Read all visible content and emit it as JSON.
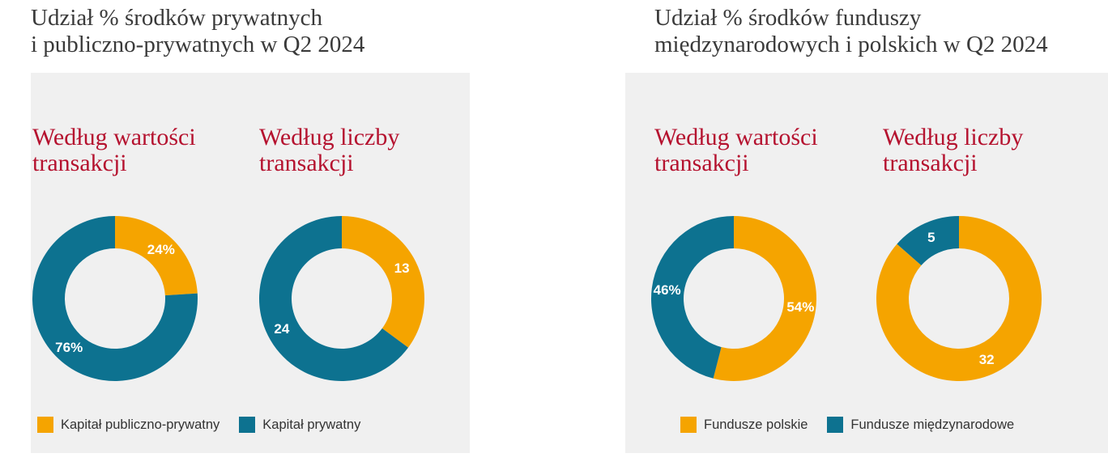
{
  "colors": {
    "orange": "#f5a400",
    "teal": "#0d7290",
    "red": "#b5122f"
  },
  "left_section": {
    "title_line1": "Udział % środków prywatnych",
    "title_line2": "i publiczno-prywatnych w Q2 2024",
    "legend": [
      {
        "label": "Kapitał publiczno-prywatny",
        "color": "#f5a400"
      },
      {
        "label": "Kapitał prywatny",
        "color": "#0d7290"
      }
    ]
  },
  "right_section": {
    "title_line1": "Udział % środków funduszy",
    "title_line2": "międzynarodowych i polskich w Q2 2024",
    "legend": [
      {
        "label": "Fundusze polskie",
        "color": "#f5a400"
      },
      {
        "label": "Fundusze międzynarodowe",
        "color": "#0d7290"
      }
    ]
  },
  "chart_data": [
    {
      "type": "pie",
      "subtitle_line1": "Według wartości",
      "subtitle_line2": "transakcji",
      "labels": [
        "Kapitał publiczno-prywatny",
        "Kapitał prywatny"
      ],
      "values": [
        24,
        76
      ],
      "display": [
        "24%",
        "76%"
      ],
      "colors": [
        "#f5a400",
        "#0d7290"
      ]
    },
    {
      "type": "pie",
      "subtitle_line1": "Według liczby",
      "subtitle_line2": "transakcji",
      "labels": [
        "Kapitał publiczno-prywatny",
        "Kapitał prywatny"
      ],
      "values": [
        13,
        24
      ],
      "display": [
        "13",
        "24"
      ],
      "colors": [
        "#f5a400",
        "#0d7290"
      ]
    },
    {
      "type": "pie",
      "subtitle_line1": "Według wartości",
      "subtitle_line2": "transakcji",
      "labels": [
        "Fundusze polskie",
        "Fundusze międzynarodowe"
      ],
      "values": [
        54,
        46
      ],
      "display": [
        "54%",
        "46%"
      ],
      "colors": [
        "#f5a400",
        "#0d7290"
      ]
    },
    {
      "type": "pie",
      "subtitle_line1": "Według liczby",
      "subtitle_line2": "transakcji",
      "labels": [
        "Fundusze polskie",
        "Fundusze międzynarodowe"
      ],
      "values": [
        32,
        5
      ],
      "display": [
        "32",
        "5"
      ],
      "colors": [
        "#f5a400",
        "#0d7290"
      ]
    }
  ]
}
